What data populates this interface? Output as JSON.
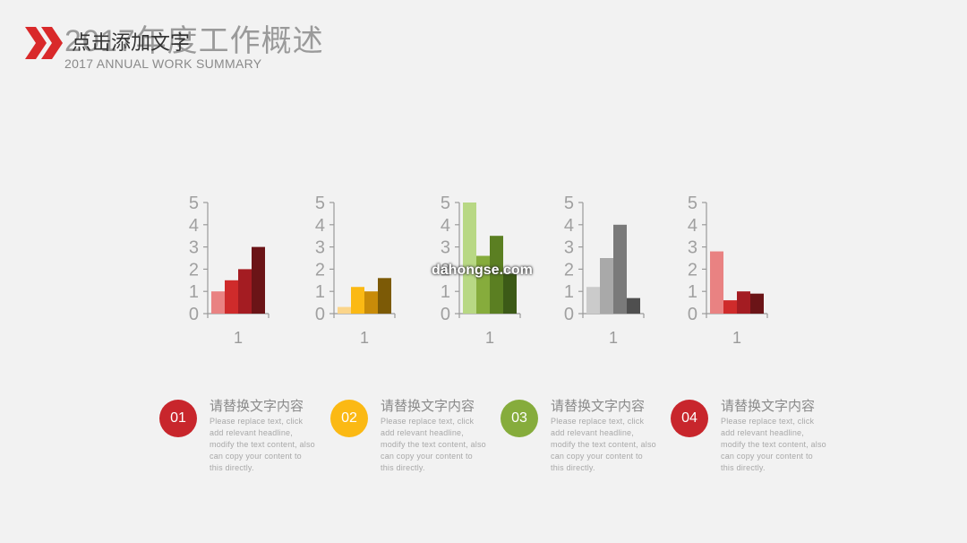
{
  "header": {
    "title": "2017年度工作概述",
    "overlay_text": "点击添加文字",
    "subtitle": "2017 ANNUAL WORK SUMMARY",
    "accent_color": "#d9292a"
  },
  "watermark": "dahongse.com",
  "chart_data": [
    {
      "type": "bar",
      "categories": [
        "1"
      ],
      "ylim": [
        0,
        5
      ],
      "yticks": [
        "0",
        "1",
        "2",
        "3",
        "4",
        "5"
      ],
      "series": [
        {
          "values": [
            1.0
          ],
          "color": "#e98282"
        },
        {
          "values": [
            1.5
          ],
          "color": "#cf2b2b"
        },
        {
          "values": [
            2.0
          ],
          "color": "#a41c22"
        },
        {
          "values": [
            3.0
          ],
          "color": "#6b1417"
        }
      ]
    },
    {
      "type": "bar",
      "categories": [
        "1"
      ],
      "ylim": [
        0,
        5
      ],
      "yticks": [
        "0",
        "1",
        "2",
        "3",
        "4",
        "5"
      ],
      "series": [
        {
          "values": [
            0.3
          ],
          "color": "#fbd58a"
        },
        {
          "values": [
            1.2
          ],
          "color": "#fbb914"
        },
        {
          "values": [
            1.0
          ],
          "color": "#c88b09"
        },
        {
          "values": [
            1.6
          ],
          "color": "#7c5a06"
        }
      ]
    },
    {
      "type": "bar",
      "categories": [
        "1"
      ],
      "ylim": [
        0,
        5
      ],
      "yticks": [
        "0",
        "1",
        "2",
        "3",
        "4",
        "5"
      ],
      "series": [
        {
          "values": [
            5.0
          ],
          "color": "#b8d884"
        },
        {
          "values": [
            2.6
          ],
          "color": "#86ac3c"
        },
        {
          "values": [
            3.5
          ],
          "color": "#5b7f22"
        },
        {
          "values": [
            1.8
          ],
          "color": "#3c5a17"
        }
      ]
    },
    {
      "type": "bar",
      "categories": [
        "1"
      ],
      "ylim": [
        0,
        5
      ],
      "yticks": [
        "0",
        "1",
        "2",
        "3",
        "4",
        "5"
      ],
      "series": [
        {
          "values": [
            1.2
          ],
          "color": "#cbcbcb"
        },
        {
          "values": [
            2.5
          ],
          "color": "#a9a9a9"
        },
        {
          "values": [
            4.0
          ],
          "color": "#7a7a7a"
        },
        {
          "values": [
            0.7
          ],
          "color": "#4f4f4f"
        }
      ]
    },
    {
      "type": "bar",
      "categories": [
        "1"
      ],
      "ylim": [
        0,
        5
      ],
      "yticks": [
        "0",
        "1",
        "2",
        "3",
        "4",
        "5"
      ],
      "series": [
        {
          "values": [
            2.8
          ],
          "color": "#e98282"
        },
        {
          "values": [
            0.6
          ],
          "color": "#cf2b2b"
        },
        {
          "values": [
            1.0
          ],
          "color": "#a41c22"
        },
        {
          "values": [
            0.9
          ],
          "color": "#6b1417"
        }
      ]
    }
  ],
  "cards": [
    {
      "number": "01",
      "title": "请替换文字内容",
      "body": "Please replace text, click add relevant headline, modify the text content, also can copy your content to this directly.",
      "color": "#c8262c"
    },
    {
      "number": "02",
      "title": "请替换文字内容",
      "body": "Please replace text, click add relevant headline, modify the text content, also can copy your content to this directly.",
      "color": "#fbb914"
    },
    {
      "number": "03",
      "title": "请替换文字内容",
      "body": "Please replace text, click add relevant headline, modify the text content, also can copy your content to this directly.",
      "color": "#86ac3c"
    },
    {
      "number": "04",
      "title": "请替换文字内容",
      "body": "Please replace text, click add relevant headline, modify the text content, also can copy your content to this directly.",
      "color": "#c8262c"
    }
  ]
}
